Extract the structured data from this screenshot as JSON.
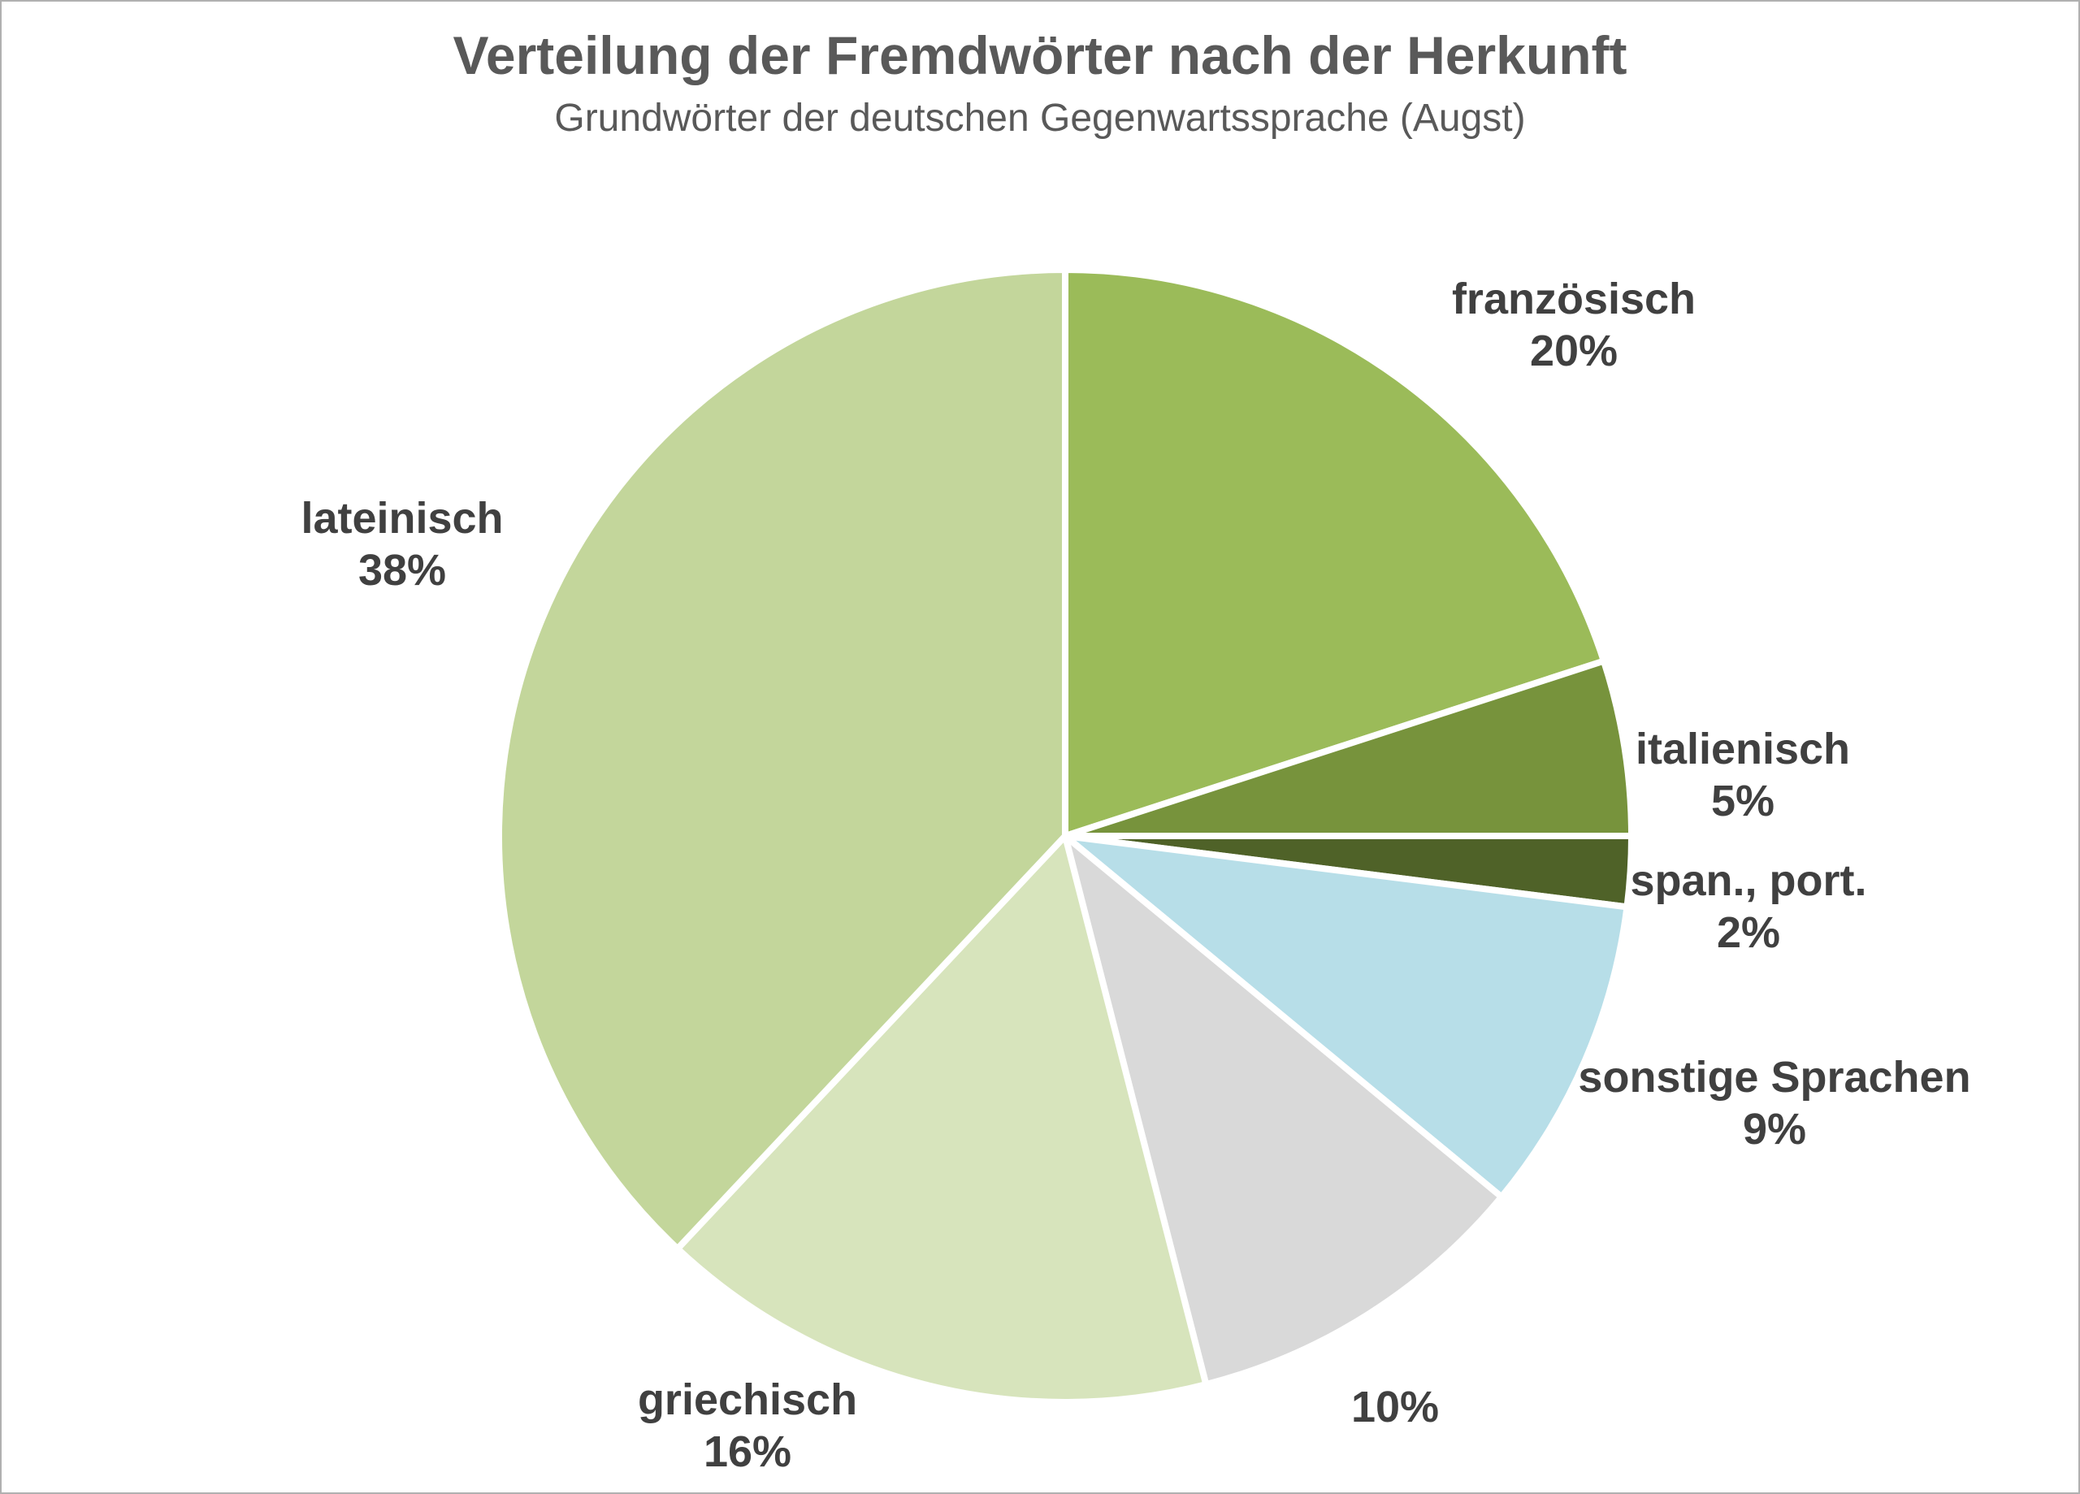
{
  "chart_data": {
    "type": "pie",
    "title": "Verteilung der Fremdwörter nach der Herkunft",
    "subtitle": "Grundwörter der deutschen Gegenwartssprache (Augst)",
    "labels": [
      "französisch",
      "italienisch",
      "span., port.",
      "sonstige Sprachen",
      "",
      "griechisch",
      "lateinisch"
    ],
    "values": [
      20,
      5,
      2,
      9,
      10,
      16,
      38
    ],
    "pct_labels": [
      "20%",
      "5%",
      "2%",
      "9%",
      "10%",
      "16%",
      "38%"
    ],
    "colors": [
      "#9bbb59",
      "#77933c",
      "#4f6228",
      "#b7dee8",
      "#d9d9d9",
      "#d7e4bc",
      "#c3d69b"
    ],
    "start_angle_deg": 0,
    "direction": "clockwise",
    "stroke_color": "#ffffff",
    "legend": "none",
    "label_placement": "outside",
    "title_color": "#595959",
    "label_color": "#404040",
    "background_color": "#ffffff"
  }
}
